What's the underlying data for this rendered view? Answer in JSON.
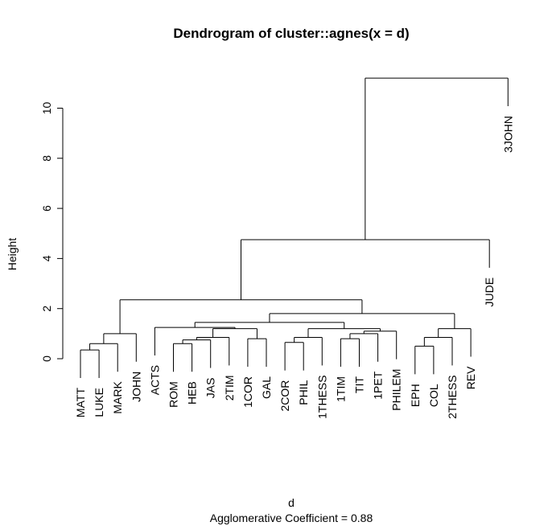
{
  "chart_data": {
    "type": "dendrogram",
    "title": "Dendrogram of  cluster::agnes(x = d)",
    "xlabel": "d",
    "ylabel": "Height",
    "subtitle": "Agglomerative Coefficient =  0.88",
    "ylim": [
      0,
      11.2
    ],
    "yticks": [
      0,
      2,
      4,
      6,
      8,
      10
    ],
    "leaves": [
      "MATT",
      "LUKE",
      "MARK",
      "JOHN",
      "ACTS",
      "ROM",
      "HEB",
      "JAS",
      "2TIM",
      "1COR",
      "GAL",
      "2COR",
      "PHIL",
      "1THESS",
      "1TIM",
      "TIT",
      "1PET",
      "PHILEM",
      "EPH",
      "COL",
      "2THESS",
      "REV",
      "JUDE",
      "3JOHN"
    ],
    "merges": [
      {
        "a": "MATT",
        "b": "LUKE",
        "height": 0.35
      },
      {
        "a": 0,
        "b": "MARK",
        "height": 0.6
      },
      {
        "a": 1,
        "b": "JOHN",
        "height": 1.0
      },
      {
        "a": "ROM",
        "b": "HEB",
        "height": 0.6
      },
      {
        "a": 3,
        "b": "JAS",
        "height": 0.75
      },
      {
        "a": 4,
        "b": "2TIM",
        "height": 0.85
      },
      {
        "a": "1COR",
        "b": "GAL",
        "height": 0.8
      },
      {
        "a": 5,
        "b": 6,
        "height": 1.2
      },
      {
        "a": "ACTS",
        "b": 7,
        "height": 1.25
      },
      {
        "a": "2COR",
        "b": "PHIL",
        "height": 0.65
      },
      {
        "a": 9,
        "b": "1THESS",
        "height": 0.85
      },
      {
        "a": "1TIM",
        "b": "TIT",
        "height": 0.8
      },
      {
        "a": 11,
        "b": "1PET",
        "height": 1.0
      },
      {
        "a": 12,
        "b": "PHILEM",
        "height": 1.1
      },
      {
        "a": 10,
        "b": 13,
        "height": 1.2
      },
      {
        "a": 8,
        "b": 14,
        "height": 1.45
      },
      {
        "a": "EPH",
        "b": "COL",
        "height": 0.5
      },
      {
        "a": 16,
        "b": "2THESS",
        "height": 0.85
      },
      {
        "a": 17,
        "b": "REV",
        "height": 1.2
      },
      {
        "a": 15,
        "b": 18,
        "height": 1.8
      },
      {
        "a": 2,
        "b": 19,
        "height": 2.35
      },
      {
        "a": 20,
        "b": "JUDE",
        "height": 4.75
      },
      {
        "a": 21,
        "b": "3JOHN",
        "height": 11.2
      }
    ]
  }
}
